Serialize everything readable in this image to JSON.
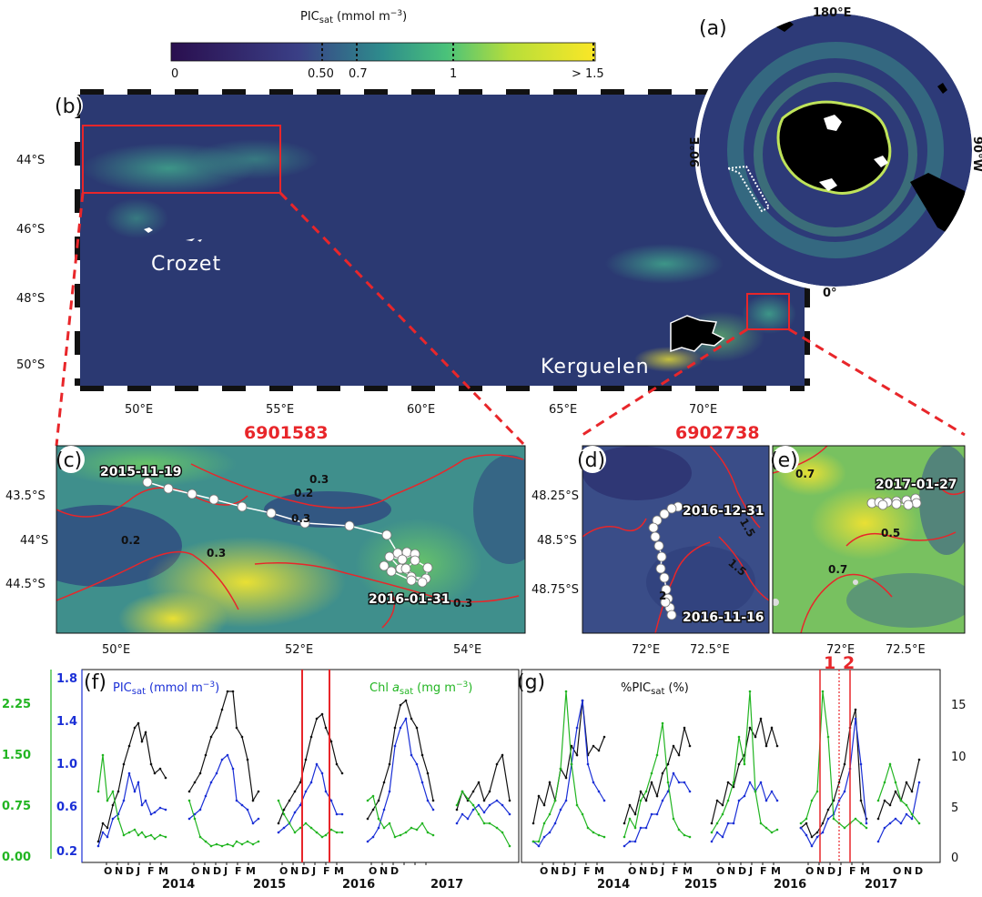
{
  "colorbar": {
    "title_main": "PIC",
    "title_sub": "sat",
    "title_unit": "(mmol m",
    "title_exp": "−3",
    "title_close": ")",
    "ticks": [
      "0",
      "0.50",
      "0.7",
      "1",
      "> 1.5"
    ],
    "colors": [
      "#2a0f4f",
      "#3a4b8c",
      "#2e8d8c",
      "#4ac27a",
      "#b7de3a",
      "#fbe726"
    ]
  },
  "panels": {
    "a": "(a)",
    "b": "(b)",
    "c": "(c)",
    "d": "(d)",
    "e": "(e)",
    "f": "(f)",
    "g": "(g)"
  },
  "polar": {
    "top": "180°E",
    "bottom": "0°",
    "left": "90°E",
    "right": "90°W"
  },
  "map_b": {
    "lat_labels": [
      "44°S",
      "46°S",
      "48°S",
      "50°S"
    ],
    "lon_labels": [
      "50°E",
      "55°E",
      "60°E",
      "65°E",
      "70°E"
    ],
    "places": [
      "Crozet",
      "Kerguelen"
    ]
  },
  "floats": [
    "6901583",
    "6902738"
  ],
  "panel_c": {
    "lat_labels": [
      "43.5°S",
      "44°S",
      "44.5°S"
    ],
    "lon_labels": [
      "50°E",
      "52°E",
      "54°E"
    ],
    "dates": [
      "2015-11-19",
      "2016-01-31"
    ],
    "contours": [
      "0.3",
      "0.2",
      "0.3",
      "0.2",
      "0.3",
      "0.3"
    ]
  },
  "panel_d": {
    "lat_labels": [
      "48.25°S",
      "48.5°S",
      "48.75°S"
    ],
    "lon_labels": [
      "72°E",
      "72.5°E"
    ],
    "dates": [
      "2016-12-31",
      "2016-11-16"
    ],
    "contours": [
      "1.5",
      "1.5",
      "2"
    ]
  },
  "panel_e": {
    "lon_labels": [
      "72°E",
      "72.5°E"
    ],
    "dates": [
      "2017-01-27"
    ],
    "contours": [
      "0.7",
      "0.5",
      "0.7"
    ]
  },
  "panel_f": {
    "legend_pic": "PIC",
    "legend_pic_sub": "sat",
    "legend_pic_unit": "(mmol m",
    "legend_pic_exp": "−3",
    "legend_pic_close": ")",
    "legend_chl": "Chl",
    "legend_chl_a": "a",
    "legend_chl_sub": "sat",
    "legend_chl_unit": "(mg m",
    "legend_chl_exp": "−3",
    "legend_chl_close": ")",
    "left_ticks_green": [
      "2.25",
      "1.50",
      "0.75",
      "0.00"
    ],
    "left_ticks_blue": [
      "1.8",
      "1.4",
      "1.0",
      "0.6",
      "0.2"
    ],
    "month_letters": [
      "O",
      "N",
      "D",
      "J",
      "F",
      "M"
    ],
    "years": [
      "2014",
      "2015",
      "2016",
      "2017"
    ]
  },
  "panel_g": {
    "legend": "%PIC",
    "legend_sub": "sat",
    "legend_unit": "(%)",
    "right_ticks": [
      "15",
      "10",
      "5",
      "0"
    ],
    "markers": [
      "1",
      "2"
    ],
    "years": [
      "2014",
      "2015",
      "2016",
      "2017"
    ]
  },
  "line_colors": {
    "black": "#111111",
    "blue": "#1a2fd6",
    "green": "#22b522",
    "red": "#e8262a"
  }
}
